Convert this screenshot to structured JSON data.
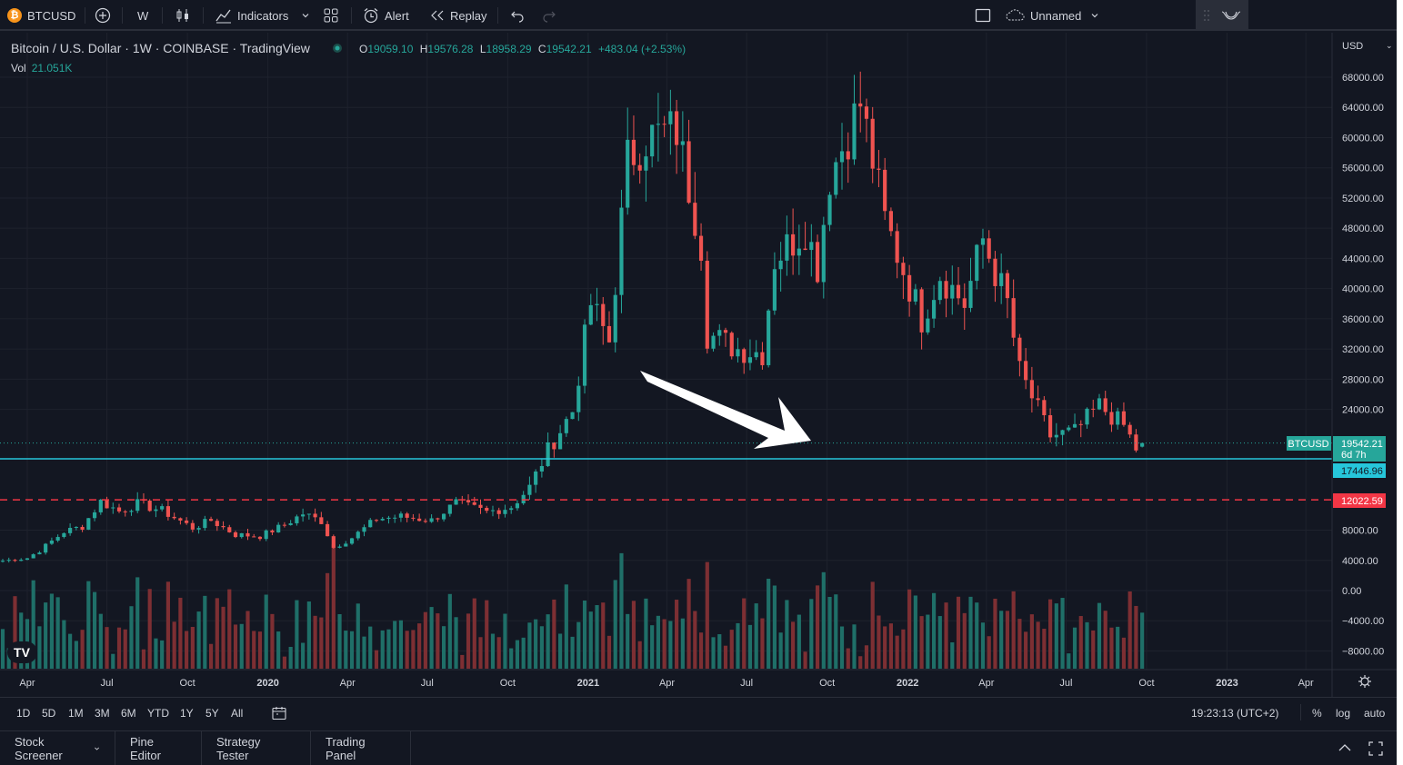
{
  "toolbar": {
    "symbol": "BTCUSD",
    "interval": "W",
    "indicators_label": "Indicators",
    "alert_label": "Alert",
    "replay_label": "Replay",
    "layout_name": "Unnamed",
    "btc_icon_glyph": "₿"
  },
  "legend": {
    "title": "Bitcoin / U.S. Dollar · 1W · COINBASE · TradingView",
    "o_label": "O",
    "o_value": "19059.10",
    "h_label": "H",
    "h_value": "19576.28",
    "l_label": "L",
    "l_value": "18958.29",
    "c_label": "C",
    "c_value": "19542.21",
    "change": "+483.04 (+2.53%)",
    "vol_label": "Vol",
    "vol_value": "21.051K"
  },
  "price_axis": {
    "currency": "USD",
    "ticks": [
      "68000.00",
      "64000.00",
      "60000.00",
      "56000.00",
      "52000.00",
      "48000.00",
      "44000.00",
      "40000.00",
      "36000.00",
      "32000.00",
      "28000.00",
      "24000.00",
      "8000.00",
      "4000.00",
      "0.00",
      "−4000.00",
      "−8000.00"
    ],
    "last_price_label": "19542.21",
    "countdown": "6d 7h",
    "symbol_tag": "BTCUSD",
    "hline1_label": "17446.96",
    "hline2_label": "12022.59"
  },
  "time_axis": {
    "labels": [
      "Apr",
      "Jul",
      "Oct",
      "2020",
      "Apr",
      "Jul",
      "Oct",
      "2021",
      "Apr",
      "Jul",
      "Oct",
      "2022",
      "Apr",
      "Jul",
      "Oct",
      "2023",
      "Apr"
    ]
  },
  "range_bar": {
    "buttons": [
      "1D",
      "5D",
      "1M",
      "3M",
      "6M",
      "YTD",
      "1Y",
      "5Y",
      "All"
    ],
    "clock": "19:23:13 (UTC+2)",
    "percent_label": "%",
    "log_label": "log",
    "auto_label": "auto"
  },
  "bottom_tabs": [
    "Stock Screener",
    "Pine Editor",
    "Strategy Tester",
    "Trading Panel"
  ],
  "colors": {
    "up": "#26a69a",
    "down": "#ef5350",
    "vol_up": "#1f6f68",
    "vol_down": "#7d2f33",
    "hline_teal": "#26c6da",
    "hline_red": "#f23645",
    "background": "#131722"
  },
  "chart_data": {
    "type": "candlestick",
    "price_scale_series": {
      "name": "BTCUSD",
      "weekly_close_anchors": [
        [
          "2019-03-04",
          3950
        ],
        [
          "2019-04-01",
          4300
        ],
        [
          "2019-04-15",
          5300
        ],
        [
          "2019-05-13",
          7800
        ],
        [
          "2019-06-03",
          8500
        ],
        [
          "2019-06-24",
          11800
        ],
        [
          "2019-07-15",
          10500
        ],
        [
          "2019-08-05",
          11500
        ],
        [
          "2019-09-02",
          10600
        ],
        [
          "2019-10-07",
          8300
        ],
        [
          "2019-10-28",
          9300
        ],
        [
          "2019-11-25",
          7400
        ],
        [
          "2019-12-23",
          7200
        ],
        [
          "2020-01-20",
          8700
        ],
        [
          "2020-02-10",
          10200
        ],
        [
          "2020-03-02",
          9200
        ],
        [
          "2020-03-16",
          5700
        ],
        [
          "2020-04-06",
          7000
        ],
        [
          "2020-05-04",
          9500
        ],
        [
          "2020-06-01",
          9800
        ],
        [
          "2020-07-06",
          9300
        ],
        [
          "2020-08-03",
          11600
        ],
        [
          "2020-09-07",
          10400
        ],
        [
          "2020-10-05",
          11100
        ],
        [
          "2020-10-26",
          13700
        ],
        [
          "2020-11-16",
          18600
        ],
        [
          "2020-12-14",
          23800
        ],
        [
          "2021-01-04",
          38000
        ],
        [
          "2021-01-25",
          33000
        ],
        [
          "2021-02-15",
          57000
        ],
        [
          "2021-03-08",
          60000
        ],
        [
          "2021-04-12",
          61000
        ],
        [
          "2021-05-10",
          46000
        ],
        [
          "2021-05-17",
          34000
        ],
        [
          "2021-06-21",
          32000
        ],
        [
          "2021-07-19",
          31500
        ],
        [
          "2021-08-02",
          44000
        ],
        [
          "2021-09-06",
          48000
        ],
        [
          "2021-09-20",
          43000
        ],
        [
          "2021-10-04",
          55000
        ],
        [
          "2021-11-08",
          64500
        ],
        [
          "2021-11-22",
          57000
        ],
        [
          "2021-12-06",
          49000
        ],
        [
          "2022-01-17",
          36000
        ],
        [
          "2022-02-07",
          42000
        ],
        [
          "2022-03-07",
          38000
        ],
        [
          "2022-03-28",
          46500
        ],
        [
          "2022-04-25",
          38000
        ],
        [
          "2022-05-09",
          29000
        ],
        [
          "2022-06-13",
          20500
        ],
        [
          "2022-07-11",
          21000
        ],
        [
          "2022-08-08",
          24500
        ],
        [
          "2022-09-05",
          21800
        ],
        [
          "2022-09-19",
          18800
        ],
        [
          "2022-09-26",
          19542
        ]
      ],
      "last": {
        "open": 19059.1,
        "high": 19576.28,
        "low": 18958.29,
        "close": 19542.21
      }
    },
    "horizontal_lines": [
      17446.96,
      12022.59
    ],
    "y_axis_ticks": [
      68000,
      64000,
      60000,
      56000,
      52000,
      48000,
      44000,
      40000,
      36000,
      32000,
      28000,
      24000,
      8000,
      4000,
      0,
      -4000,
      -8000
    ],
    "x_range": [
      "2019-03-04",
      "2023-05-01"
    ],
    "volume_last": "21.051K"
  }
}
